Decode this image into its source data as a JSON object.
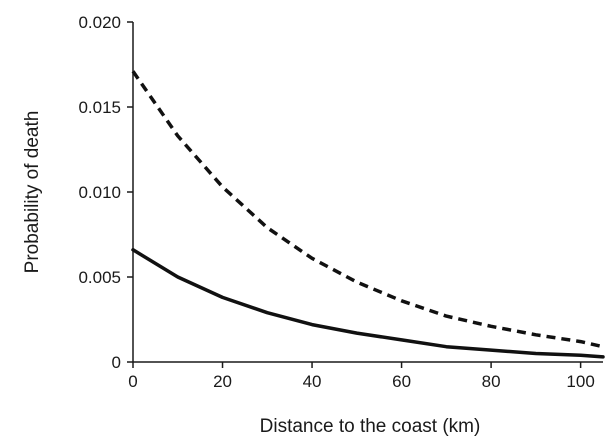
{
  "chart_data": {
    "type": "line",
    "xlabel": "Distance to the coast (km)",
    "ylabel": "Probability of death",
    "xlim": [
      0,
      105
    ],
    "ylim": [
      0,
      0.02
    ],
    "xticks": [
      0,
      20,
      40,
      60,
      80,
      100
    ],
    "xtick_labels": [
      "0",
      "20",
      "40",
      "60",
      "80",
      "100"
    ],
    "yticks": [
      0,
      0.005,
      0.01,
      0.015,
      0.02
    ],
    "ytick_labels": [
      "0",
      "0.005",
      "0.010",
      "0.015",
      "0.020"
    ],
    "grid": false,
    "series": [
      {
        "style": "dashed",
        "color": "#111111",
        "x": [
          0,
          10,
          20,
          30,
          40,
          50,
          60,
          70,
          80,
          90,
          100,
          105
        ],
        "y": [
          0.0171,
          0.0133,
          0.0103,
          0.0079,
          0.0061,
          0.0047,
          0.0036,
          0.0027,
          0.0021,
          0.0016,
          0.0012,
          0.0009
        ]
      },
      {
        "style": "solid",
        "color": "#111111",
        "x": [
          0,
          10,
          20,
          30,
          40,
          50,
          60,
          70,
          80,
          90,
          100,
          105
        ],
        "y": [
          0.0066,
          0.005,
          0.0038,
          0.0029,
          0.0022,
          0.0017,
          0.0013,
          0.0009,
          0.0007,
          0.0005,
          0.0004,
          0.0003
        ]
      }
    ]
  }
}
